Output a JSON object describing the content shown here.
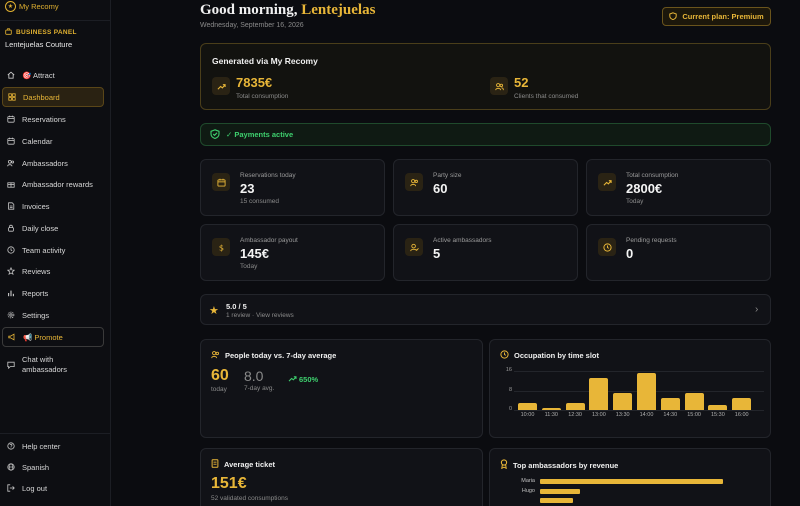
{
  "app": {
    "name": "My Recomy"
  },
  "sidebar": {
    "section": "BUSINESS PANEL",
    "business": "Lentejuelas Couture",
    "items": [
      {
        "label": "🎯 Attract",
        "icon": "home-icon"
      },
      {
        "label": "Dashboard",
        "icon": "grid-icon"
      },
      {
        "label": "Reservations",
        "icon": "calendar-icon"
      },
      {
        "label": "Calendar",
        "icon": "calendar-icon"
      },
      {
        "label": "Ambassadors",
        "icon": "users-icon"
      },
      {
        "label": "Ambassador rewards",
        "icon": "gift-icon"
      },
      {
        "label": "Invoices",
        "icon": "document-icon"
      },
      {
        "label": "Daily close",
        "icon": "lock-icon"
      },
      {
        "label": "Team activity",
        "icon": "activity-icon"
      },
      {
        "label": "Reviews",
        "icon": "star-icon"
      },
      {
        "label": "Reports",
        "icon": "chart-icon"
      },
      {
        "label": "Settings",
        "icon": "gear-icon"
      },
      {
        "label": "📢 Promote",
        "icon": "megaphone-icon"
      },
      {
        "label_line1": "Chat with",
        "label_line2": "ambassadors",
        "icon": "chat-icon"
      }
    ],
    "bottom": [
      {
        "label": "Help center",
        "icon": "help-icon"
      },
      {
        "label": "Spanish",
        "icon": "globe-icon"
      },
      {
        "label": "Log out",
        "icon": "logout-icon"
      }
    ]
  },
  "header": {
    "greeting": "Good morning,",
    "name": "Lentejuelas",
    "date": "Wednesday, September 16, 2026",
    "plan": "Current plan: Premium"
  },
  "generated": {
    "title": "Generated via My Recomy",
    "total_value": "7835€",
    "total_label": "Total consumption",
    "clients_value": "52",
    "clients_label": "Clients that consumed"
  },
  "payments": {
    "label": "✓ Payments active"
  },
  "stats": [
    {
      "label": "Reservations today",
      "value": "23",
      "sub": "15 consumed"
    },
    {
      "label": "Party size",
      "value": "60",
      "sub": ""
    },
    {
      "label": "Total consumption",
      "value": "2800€",
      "sub": "Today"
    },
    {
      "label": "Ambassador payout",
      "value": "145€",
      "sub": "Today"
    },
    {
      "label": "Active ambassadors",
      "value": "5",
      "sub": ""
    },
    {
      "label": "Pending requests",
      "value": "0",
      "sub": ""
    }
  ],
  "reviews": {
    "score": "5.0 / 5",
    "sub": "1 review · View reviews"
  },
  "people": {
    "title": "People today vs. 7-day average",
    "today_value": "60",
    "today_label": "today",
    "avg_value": "8.0",
    "avg_label": "7-day avg.",
    "change": "650%"
  },
  "occupation": {
    "title": "Occupation by time slot"
  },
  "ticket": {
    "title": "Average ticket",
    "value": "151€",
    "sub": "52 validated consumptions"
  },
  "top_ambassadors": {
    "title": "Top ambassadors by revenue"
  },
  "colors": {
    "accent": "#e8b638",
    "success": "#3ecf6e",
    "background": "#0b0c10"
  },
  "chart_data": [
    {
      "type": "bar",
      "title": "Occupation by time slot",
      "categories": [
        "10:00",
        "11:30",
        "12:30",
        "13:00",
        "13:30",
        "14:00",
        "14:30",
        "15:00",
        "15:30",
        "16:00"
      ],
      "values": [
        3,
        1,
        3,
        13,
        7,
        15,
        5,
        7,
        2,
        5
      ],
      "yticks": [
        "16",
        "8",
        "0"
      ],
      "ylim": [
        0,
        16
      ],
      "grid": true
    },
    {
      "type": "bar",
      "orientation": "horizontal",
      "title": "Top ambassadors by revenue",
      "categories": [
        "Maria",
        "Hugo",
        ""
      ],
      "values": [
        1000,
        220,
        180
      ]
    }
  ]
}
